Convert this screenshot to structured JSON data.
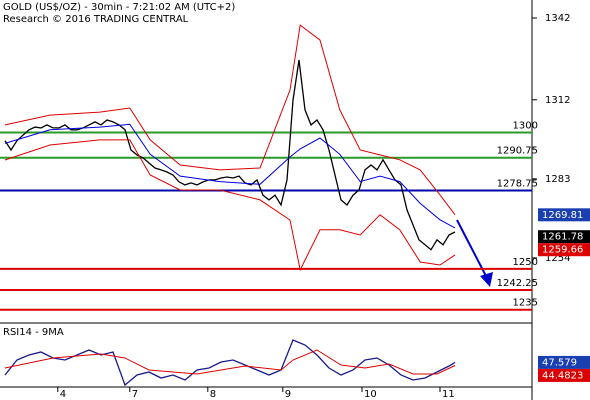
{
  "header": {
    "title": "GOLD (US$/OZ) - 30min - 7:21:02 AM (UTC+2)",
    "subtitle": "Research © 2016 TRADING CENTRAL"
  },
  "chart_data": [
    {
      "type": "line",
      "xlim": [
        0,
        75
      ],
      "xticks": [
        {
          "value": 8.8,
          "label": "4"
        },
        {
          "value": 20.8,
          "label": "7"
        },
        {
          "value": 33.8,
          "label": "8"
        },
        {
          "value": 46.3,
          "label": "9"
        },
        {
          "value": 59.5,
          "label": "10"
        },
        {
          "value": 72.5,
          "label": "11"
        }
      ],
      "ylim": [
        1230.5,
        1348.6
      ],
      "yticks": [
        1342,
        1312,
        1283,
        1254
      ],
      "series": [
        {
          "name": "Close",
          "color": "#000000",
          "values": [
            1297,
            1293.6,
            1297,
            1299,
            1301,
            1302,
            1301.7,
            1302.8,
            1301.7,
            1301.7,
            1302.8,
            1301,
            1301,
            1301.7,
            1302.8,
            1303.9,
            1302.8,
            1304.6,
            1303.9,
            1302.8,
            1301,
            1293.6,
            1291.8,
            1290.7,
            1288.8,
            1287,
            1286.3,
            1285.5,
            1284.4,
            1281.9,
            1280.8,
            1281.5,
            1280.8,
            1281.9,
            1282.6,
            1282.6,
            1283.3,
            1283.7,
            1283.3,
            1284,
            1281.5,
            1280.8,
            1282.6,
            1277,
            1275.3,
            1277,
            1273.4,
            1282.6,
            1311.9,
            1326.6,
            1308.3,
            1302.8,
            1304.6,
            1301,
            1293.6,
            1284.4,
            1275.3,
            1273.4,
            1277,
            1278.9,
            1286.3,
            1288.1,
            1286.3,
            1290,
            1286.3,
            1282.6,
            1280.8,
            1271.6,
            1266.1,
            1260.6,
            1258.8,
            1257,
            1260.6,
            1258.8,
            1262.4,
            1263.5
          ]
        },
        {
          "name": "Upper band",
          "color": "#dd0000",
          "x": [
            0,
            7.5,
            15.8,
            20.8,
            24.2,
            29.2,
            35.8,
            42.5,
            47.5,
            49.2,
            52.5,
            55.8,
            59.2,
            62.5,
            65.8,
            69.2,
            72.5,
            75
          ],
          "values": [
            1302.8,
            1306.4,
            1307.5,
            1309,
            1297.3,
            1288.1,
            1286.3,
            1287,
            1315.6,
            1339.4,
            1333.9,
            1308.3,
            1293.6,
            1291.8,
            1290,
            1286.3,
            1277.1,
            1269.8
          ]
        },
        {
          "name": "Lower band",
          "color": "#dd0000",
          "x": [
            0,
            7.5,
            15.8,
            20.8,
            24.2,
            29.2,
            35.8,
            42.5,
            47.5,
            49.2,
            52.5,
            55.8,
            59.2,
            62.5,
            65.8,
            69.2,
            72.5,
            75
          ],
          "values": [
            1289.9,
            1295.4,
            1297.3,
            1297.3,
            1284.4,
            1278.9,
            1278.9,
            1275.3,
            1267.9,
            1249.6,
            1264.3,
            1264.3,
            1262.4,
            1269.8,
            1264.3,
            1252.5,
            1251.4,
            1255.1
          ]
        },
        {
          "name": "Moving average",
          "color": "#0000dd",
          "x": [
            0,
            7.5,
            15.8,
            20.8,
            24.2,
            29.2,
            35.8,
            42.5,
            47.5,
            49.2,
            52.5,
            55.8,
            59.2,
            62.5,
            65.8,
            69.2,
            72.5,
            75
          ],
          "values": [
            1296,
            1301,
            1302,
            1303,
            1292,
            1284,
            1282,
            1281,
            1291,
            1294,
            1298,
            1292,
            1282,
            1284,
            1282,
            1274,
            1268,
            1265
          ]
        }
      ],
      "levels": [
        {
          "value": 1300,
          "color": "#2a9a2a"
        },
        {
          "value": 1290.75,
          "color": "#2a9a2a"
        },
        {
          "value": 1278.75,
          "color": "#0000aa"
        },
        {
          "value": 1250,
          "color": "#dd0000"
        },
        {
          "value": 1242.25,
          "color": "#dd0000"
        },
        {
          "value": 1235,
          "color": "#dd0000"
        }
      ],
      "value_boxes": [
        {
          "value": 1269.81,
          "color": "#1a3fb0"
        },
        {
          "value": 1261.78,
          "color": "#000000"
        },
        {
          "value": 1259.66,
          "color": "#dd0000"
        }
      ]
    },
    {
      "type": "line",
      "title": "RSI14 - 9MA",
      "ylim": [
        20,
        80
      ],
      "series": [
        {
          "name": "RSI14",
          "color": "#1a1a8c",
          "x": [
            0,
            2,
            4,
            6,
            8,
            10,
            12,
            14,
            16,
            18,
            20,
            22,
            24,
            26,
            28,
            30,
            32,
            34,
            36,
            38,
            40,
            42,
            44,
            46,
            48,
            50,
            52,
            54,
            56,
            58,
            60,
            62,
            64,
            66,
            68,
            70,
            72,
            74,
            75
          ],
          "values": [
            35,
            50,
            55,
            58,
            52,
            50,
            55,
            60,
            55,
            58,
            25,
            35,
            38,
            32,
            35,
            30,
            40,
            42,
            48,
            50,
            45,
            40,
            35,
            40,
            70,
            65,
            55,
            42,
            35,
            40,
            50,
            52,
            45,
            35,
            30,
            32,
            38,
            44,
            47.6
          ]
        },
        {
          "name": "9MA",
          "color": "#dd0000",
          "x": [
            0,
            8,
            16,
            20,
            24,
            32,
            40,
            46,
            48,
            52,
            56,
            60,
            64,
            68,
            72,
            75
          ],
          "values": [
            42,
            52,
            56,
            52,
            40,
            36,
            44,
            40,
            50,
            60,
            45,
            42,
            46,
            36,
            36,
            44.5
          ]
        }
      ],
      "value_boxes": [
        {
          "value": 47.579,
          "color": "#1a3fb0"
        },
        {
          "value": 44.4823,
          "color": "#dd0000"
        }
      ]
    }
  ]
}
